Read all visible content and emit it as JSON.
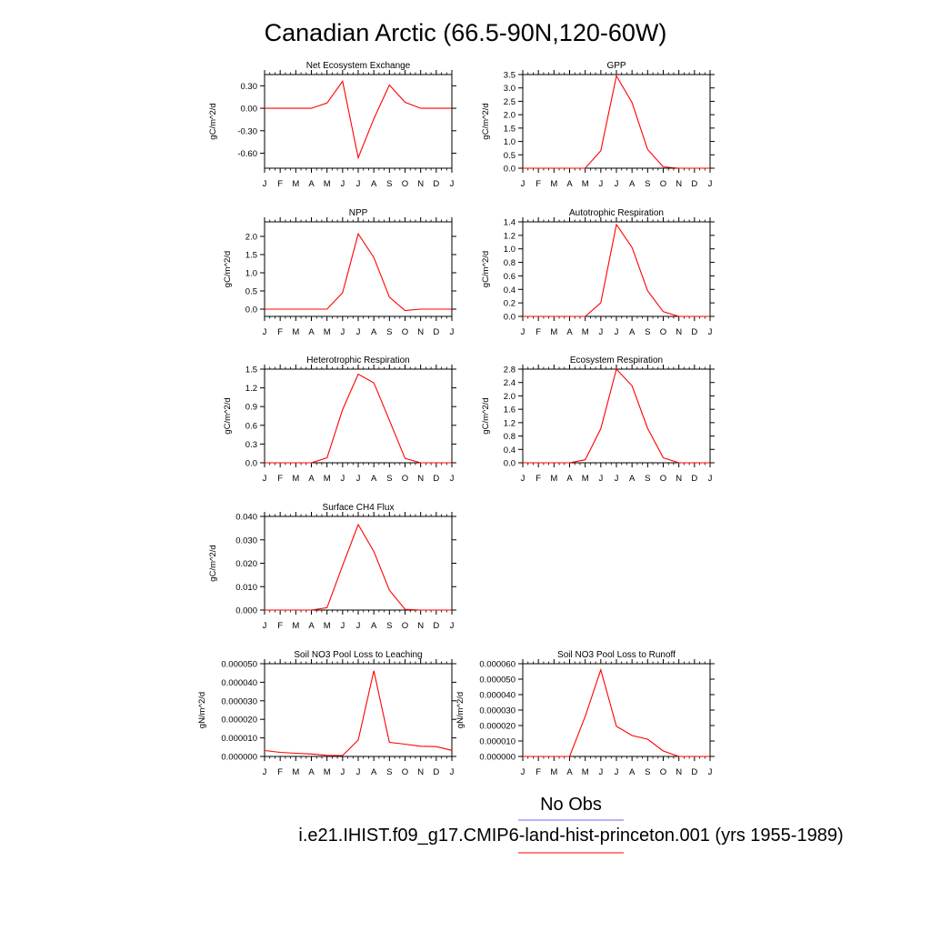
{
  "page": {
    "title": "Canadian Arctic (66.5-90N,120-60W)"
  },
  "legend": {
    "items": [
      {
        "label": "No Obs",
        "color": "#6a6af0"
      },
      {
        "label": "i.e21.IHIST.f09_g17.CMIP6-land-hist-princeton.001 (yrs 1955-1989)",
        "color": "#ff0000"
      }
    ]
  },
  "chart_data": [
    {
      "type": "line",
      "title": "Net Ecosystem Exchange",
      "ylabel": "gC/m^2/d",
      "xlabel": "",
      "x": [
        "J",
        "F",
        "M",
        "A",
        "M",
        "J",
        "J",
        "A",
        "S",
        "O",
        "N",
        "D",
        "J"
      ],
      "ylim": [
        -0.8,
        0.45
      ],
      "yticks": [
        "0.30",
        "0.00",
        "-0.30",
        "-0.60"
      ],
      "ytick_values": [
        0.3,
        0.0,
        -0.3,
        -0.6
      ],
      "series": [
        {
          "color": "#ff0000",
          "values": [
            0.0,
            0.0,
            0.0,
            0.0,
            0.07,
            0.36,
            -0.66,
            -0.14,
            0.31,
            0.08,
            0.0,
            0.0,
            0.0
          ]
        }
      ]
    },
    {
      "type": "line",
      "title": "GPP",
      "ylabel": "gC/m^2/d",
      "xlabel": "",
      "x": [
        "J",
        "F",
        "M",
        "A",
        "M",
        "J",
        "J",
        "A",
        "S",
        "O",
        "N",
        "D",
        "J"
      ],
      "ylim": [
        0,
        3.5
      ],
      "yticks": [
        "3.5",
        "3.0",
        "2.5",
        "2.0",
        "1.5",
        "1.0",
        "0.5",
        "0.0"
      ],
      "ytick_values": [
        3.5,
        3.0,
        2.5,
        2.0,
        1.5,
        1.0,
        0.5,
        0.0
      ],
      "series": [
        {
          "color": "#ff0000",
          "values": [
            0.0,
            0.0,
            0.0,
            0.0,
            0.0,
            0.65,
            3.45,
            2.45,
            0.7,
            0.05,
            0.0,
            0.0,
            0.0
          ]
        }
      ]
    },
    {
      "type": "line",
      "title": "NPP",
      "ylabel": "gC/m^2/d",
      "xlabel": "",
      "x": [
        "J",
        "F",
        "M",
        "A",
        "M",
        "J",
        "J",
        "A",
        "S",
        "O",
        "N",
        "D",
        "J"
      ],
      "ylim": [
        -0.2,
        2.4
      ],
      "yticks": [
        "2.0",
        "1.5",
        "1.0",
        "0.5",
        "0.0"
      ],
      "ytick_values": [
        2.0,
        1.5,
        1.0,
        0.5,
        0.0
      ],
      "series": [
        {
          "color": "#ff0000",
          "values": [
            0.0,
            0.0,
            0.0,
            0.0,
            0.0,
            0.45,
            2.07,
            1.42,
            0.33,
            -0.04,
            0.0,
            0.0,
            0.0
          ]
        }
      ]
    },
    {
      "type": "line",
      "title": "Autotrophic Respiration",
      "ylabel": "gC/m^2/d",
      "xlabel": "",
      "x": [
        "J",
        "F",
        "M",
        "A",
        "M",
        "J",
        "J",
        "A",
        "S",
        "O",
        "N",
        "D",
        "J"
      ],
      "ylim": [
        0,
        1.4
      ],
      "yticks": [
        "1.4",
        "1.2",
        "1.0",
        "0.8",
        "0.6",
        "0.4",
        "0.2",
        "0.0"
      ],
      "ytick_values": [
        1.4,
        1.2,
        1.0,
        0.8,
        0.6,
        0.4,
        0.2,
        0.0
      ],
      "series": [
        {
          "color": "#ff0000",
          "values": [
            0.0,
            0.0,
            0.0,
            0.0,
            0.0,
            0.2,
            1.36,
            1.02,
            0.38,
            0.07,
            0.0,
            0.0,
            0.0
          ]
        }
      ]
    },
    {
      "type": "line",
      "title": "Heterotrophic Respiration",
      "ylabel": "gC/m^2/d",
      "xlabel": "",
      "x": [
        "J",
        "F",
        "M",
        "A",
        "M",
        "J",
        "J",
        "A",
        "S",
        "O",
        "N",
        "D",
        "J"
      ],
      "ylim": [
        0,
        1.5
      ],
      "yticks": [
        "1.5",
        "1.2",
        "0.9",
        "0.6",
        "0.3",
        "0.0"
      ],
      "ytick_values": [
        1.5,
        1.2,
        0.9,
        0.6,
        0.3,
        0.0
      ],
      "series": [
        {
          "color": "#ff0000",
          "values": [
            0.0,
            0.0,
            0.0,
            0.0,
            0.08,
            0.85,
            1.42,
            1.28,
            0.68,
            0.07,
            0.0,
            0.0,
            0.0
          ]
        }
      ]
    },
    {
      "type": "line",
      "title": "Ecosystem Respiration",
      "ylabel": "gC/m^2/d",
      "xlabel": "",
      "x": [
        "J",
        "F",
        "M",
        "A",
        "M",
        "J",
        "J",
        "A",
        "S",
        "O",
        "N",
        "D",
        "J"
      ],
      "ylim": [
        0,
        2.8
      ],
      "yticks": [
        "2.8",
        "2.4",
        "2.0",
        "1.6",
        "1.2",
        "0.8",
        "0.4",
        "0.0"
      ],
      "ytick_values": [
        2.8,
        2.4,
        2.0,
        1.6,
        1.2,
        0.8,
        0.4,
        0.0
      ],
      "series": [
        {
          "color": "#ff0000",
          "values": [
            0.0,
            0.0,
            0.0,
            0.0,
            0.09,
            1.02,
            2.8,
            2.3,
            1.03,
            0.15,
            0.0,
            0.0,
            0.0
          ]
        }
      ]
    },
    {
      "type": "line",
      "title": "Surface CH4 Flux",
      "ylabel": "gC/m^2/d",
      "xlabel": "",
      "x": [
        "J",
        "F",
        "M",
        "A",
        "M",
        "J",
        "J",
        "A",
        "S",
        "O",
        "N",
        "D",
        "J"
      ],
      "ylim": [
        0,
        0.04
      ],
      "yticks": [
        "0.040",
        "0.030",
        "0.020",
        "0.010",
        "0.000"
      ],
      "ytick_values": [
        0.04,
        0.03,
        0.02,
        0.01,
        0.0
      ],
      "series": [
        {
          "color": "#ff0000",
          "values": [
            0.0,
            0.0,
            0.0,
            0.0,
            0.001,
            0.019,
            0.0365,
            0.025,
            0.0085,
            0.0003,
            0.0,
            0.0,
            0.0
          ]
        }
      ]
    },
    {
      "type": "line",
      "title": "Soil NO3 Pool Loss to Leaching",
      "ylabel": "gN/m^2/d",
      "xlabel": "",
      "x": [
        "J",
        "F",
        "M",
        "A",
        "M",
        "J",
        "J",
        "A",
        "S",
        "O",
        "N",
        "D",
        "J"
      ],
      "ylim": [
        0,
        5e-05
      ],
      "yticks": [
        "0.000050",
        "0.000040",
        "0.000030",
        "0.000020",
        "0.000010",
        "0.000000"
      ],
      "ytick_values": [
        5e-05,
        4e-05,
        3e-05,
        2e-05,
        1e-05,
        0.0
      ],
      "series": [
        {
          "color": "#ff0000",
          "values": [
            3.2e-06,
            2.2e-06,
            1.7e-06,
            1.3e-06,
            6e-07,
            5e-07,
            8.8e-06,
            4.62e-05,
            7.6e-06,
            6.6e-06,
            5.5e-06,
            5.3e-06,
            3.3e-06
          ]
        }
      ]
    },
    {
      "type": "line",
      "title": "Soil NO3 Pool Loss to Runoff",
      "ylabel": "gN/m^2/d",
      "xlabel": "",
      "x": [
        "J",
        "F",
        "M",
        "A",
        "M",
        "J",
        "J",
        "A",
        "S",
        "O",
        "N",
        "D",
        "J"
      ],
      "ylim": [
        0,
        6e-05
      ],
      "yticks": [
        "0.000060",
        "0.000050",
        "0.000040",
        "0.000030",
        "0.000020",
        "0.000010",
        "0.000000"
      ],
      "ytick_values": [
        6e-05,
        5e-05,
        4e-05,
        3e-05,
        2e-05,
        1e-05,
        0.0
      ],
      "series": [
        {
          "color": "#ff0000",
          "values": [
            0.0,
            0.0,
            0.0,
            0.0,
            2.6e-05,
            5.6e-05,
            1.95e-05,
            1.35e-05,
            1.12e-05,
            3.5e-06,
            0.0,
            0.0,
            0.0
          ]
        }
      ]
    }
  ]
}
